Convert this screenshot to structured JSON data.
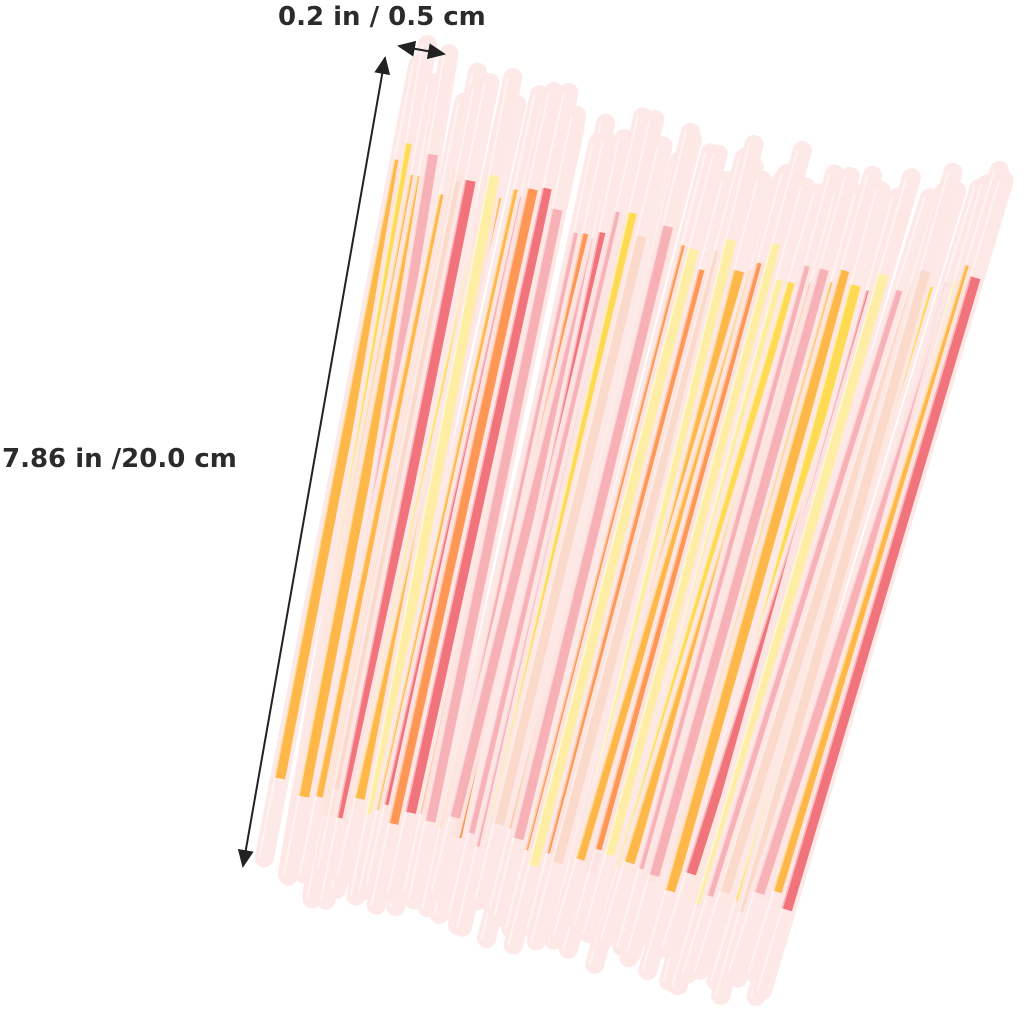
{
  "dimensions": {
    "width_label": "0.2 in / 0.5 cm",
    "length_label": "7.86 in /20.0 cm"
  },
  "product": {
    "item": "glow sticks bundle",
    "stick_colors": [
      "#f7a9b0",
      "#f0606a",
      "#ffd93a",
      "#ffb02e",
      "#fff09a",
      "#fbd8c8",
      "#ff8a3d"
    ],
    "sheath_color": "#fde8e6",
    "annotation_color": "#222222"
  }
}
